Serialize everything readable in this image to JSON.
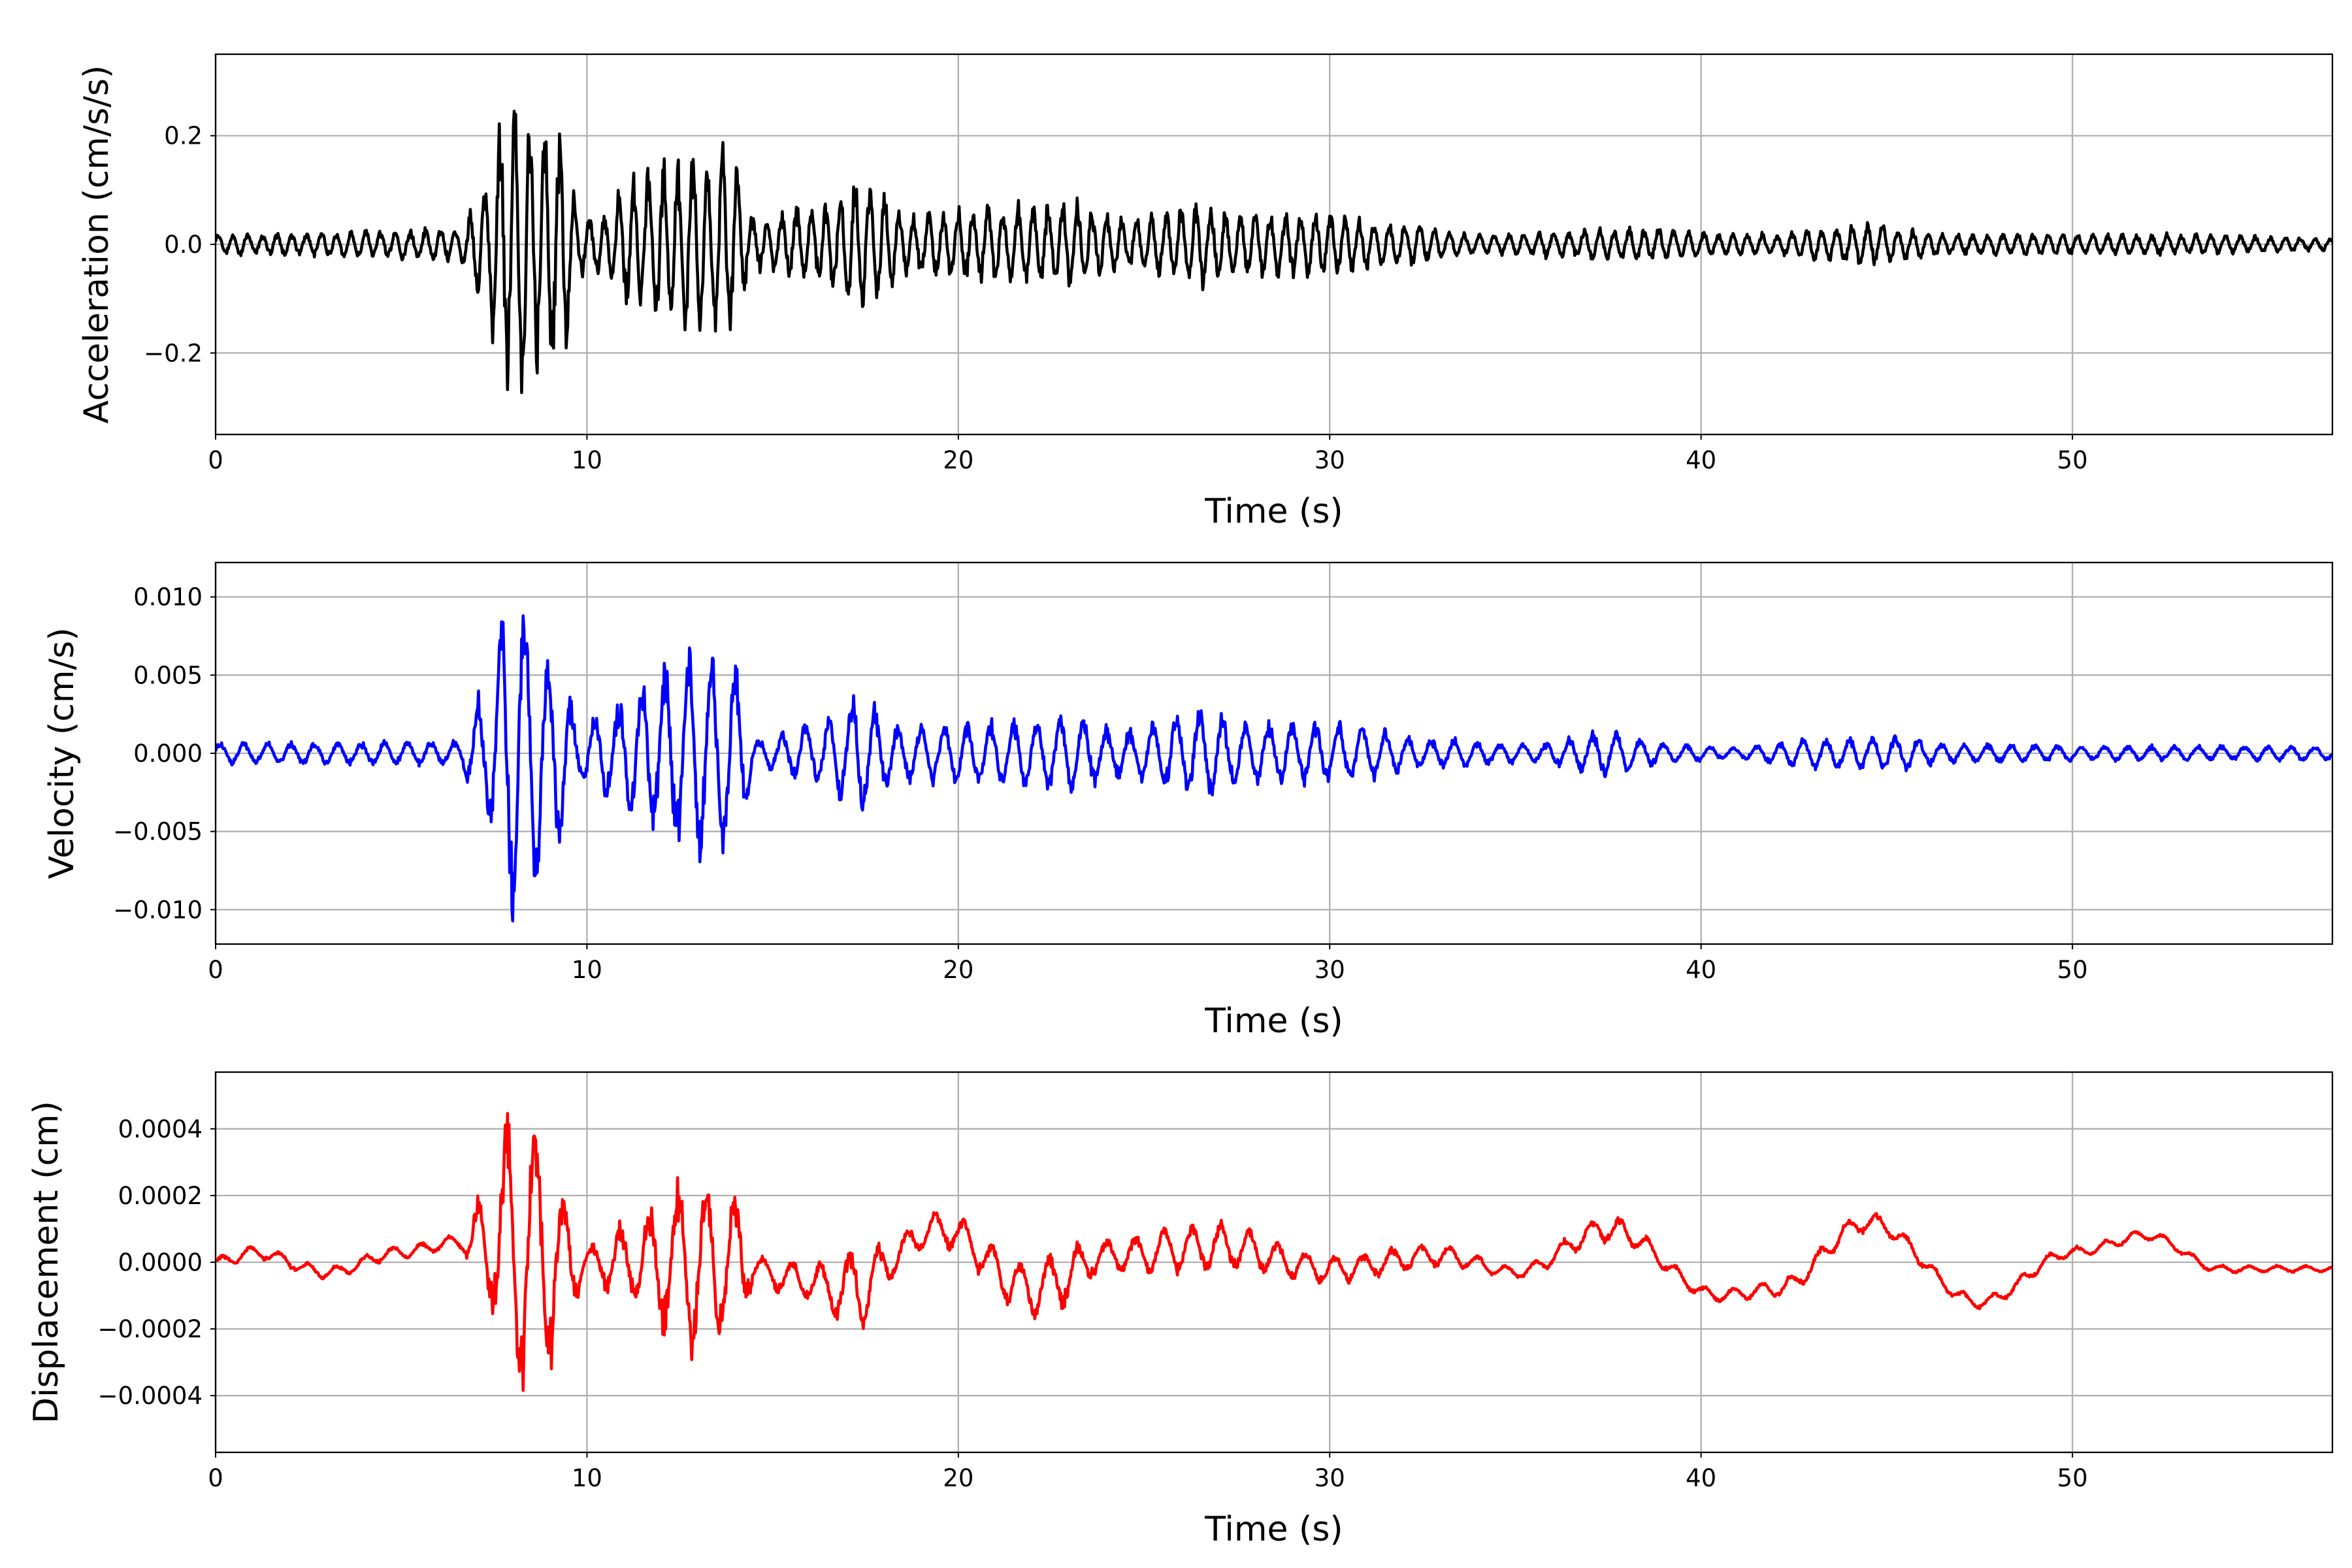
{
  "chart_data": [
    {
      "type": "line",
      "title": "",
      "xlabel": "Time (s)",
      "ylabel": "Acceleration (cm/s/s)",
      "xlim": [
        0,
        57
      ],
      "ylim": [
        -0.35,
        0.35
      ],
      "xticks": [
        0,
        10,
        20,
        30,
        40,
        50
      ],
      "xtick_labels": [
        "0",
        "10",
        "20",
        "30",
        "40",
        "50"
      ],
      "yticks": [
        -0.2,
        0.0,
        0.2
      ],
      "ytick_labels": [
        "−0.2",
        "0.0",
        "0.2"
      ],
      "grid": true,
      "color": "#000000",
      "dominant_frequency_hz": 2.5,
      "peak_positive": {
        "t": 8.0,
        "value": 0.28
      },
      "peak_negative": {
        "t": 8.1,
        "value": -0.32
      },
      "envelope": [
        [
          0,
          0.02
        ],
        [
          6.5,
          0.03
        ],
        [
          7.2,
          0.1
        ],
        [
          7.8,
          0.28
        ],
        [
          8.4,
          0.28
        ],
        [
          9.3,
          0.22
        ],
        [
          9.8,
          0.06
        ],
        [
          10.5,
          0.06
        ],
        [
          11,
          0.12
        ],
        [
          12.5,
          0.16
        ],
        [
          13.8,
          0.18
        ],
        [
          14.5,
          0.05
        ],
        [
          16,
          0.07
        ],
        [
          17.5,
          0.12
        ],
        [
          18.5,
          0.06
        ],
        [
          20,
          0.07
        ],
        [
          23,
          0.08
        ],
        [
          24.5,
          0.05
        ],
        [
          26.5,
          0.08
        ],
        [
          28,
          0.06
        ],
        [
          30,
          0.06
        ],
        [
          32,
          0.04
        ],
        [
          34,
          0.02
        ],
        [
          38,
          0.03
        ],
        [
          42,
          0.02
        ],
        [
          44,
          0.04
        ],
        [
          47,
          0.02
        ],
        [
          53,
          0.02
        ],
        [
          57,
          0.012
        ]
      ]
    },
    {
      "type": "line",
      "title": "",
      "xlabel": "Time (s)",
      "ylabel": "Velocity (cm/s)",
      "xlim": [
        0,
        57
      ],
      "ylim": [
        -0.0122,
        0.0122
      ],
      "xticks": [
        0,
        10,
        20,
        30,
        40,
        50
      ],
      "xtick_labels": [
        "0",
        "10",
        "20",
        "30",
        "40",
        "50"
      ],
      "yticks": [
        -0.01,
        -0.005,
        0.0,
        0.005,
        0.01
      ],
      "ytick_labels": [
        "−0.010",
        "−0.005",
        "0.000",
        "0.005",
        "0.010"
      ],
      "grid": true,
      "color": "#0000ff",
      "dominant_frequency_hz": 1.6,
      "peak_positive": {
        "t": 8.1,
        "value": 0.011
      },
      "peak_negative": {
        "t": 7.9,
        "value": -0.011
      },
      "envelope": [
        [
          0,
          0.0007
        ],
        [
          6.5,
          0.0008
        ],
        [
          7.2,
          0.004
        ],
        [
          7.9,
          0.011
        ],
        [
          8.5,
          0.009
        ],
        [
          9.3,
          0.006
        ],
        [
          9.8,
          0.002
        ],
        [
          10.5,
          0.003
        ],
        [
          11.5,
          0.005
        ],
        [
          13,
          0.007
        ],
        [
          14,
          0.006
        ],
        [
          14.6,
          0.001
        ],
        [
          16,
          0.002
        ],
        [
          17.3,
          0.004
        ],
        [
          18.3,
          0.002
        ],
        [
          20,
          0.002
        ],
        [
          23,
          0.0025
        ],
        [
          24.5,
          0.0015
        ],
        [
          26.5,
          0.003
        ],
        [
          28,
          0.002
        ],
        [
          30,
          0.002
        ],
        [
          33,
          0.001
        ],
        [
          35.5,
          0.0006
        ],
        [
          37.5,
          0.0015
        ],
        [
          39.5,
          0.0006
        ],
        [
          41,
          0.0004
        ],
        [
          43,
          0.001
        ],
        [
          45,
          0.0012
        ],
        [
          47,
          0.0006
        ],
        [
          52,
          0.0005
        ],
        [
          57,
          0.0005
        ]
      ]
    },
    {
      "type": "line",
      "title": "",
      "xlabel": "Time (s)",
      "ylabel": "Displacement (cm)",
      "xlim": [
        0,
        57
      ],
      "ylim": [
        -0.00057,
        0.00057
      ],
      "xticks": [
        0,
        10,
        20,
        30,
        40,
        50
      ],
      "xtick_labels": [
        "0",
        "10",
        "20",
        "30",
        "40",
        "50"
      ],
      "yticks": [
        -0.0004,
        -0.0002,
        0.0,
        0.0002,
        0.0004
      ],
      "ytick_labels": [
        "−0.0004",
        "−0.0002",
        "0.0000",
        "0.0002",
        "0.0004"
      ],
      "grid": true,
      "color": "#ff0000",
      "dominant_frequency_hz": 1.3,
      "peak_positive": {
        "t": 8.1,
        "value": 0.00042
      },
      "peak_negative": {
        "t": 8.0,
        "value": -0.00052
      },
      "envelope": [
        [
          0,
          2e-05
        ],
        [
          6.5,
          2e-05
        ],
        [
          7.2,
          0.00015
        ],
        [
          8.0,
          0.00045
        ],
        [
          8.8,
          0.0004
        ],
        [
          9.4,
          0.0002
        ],
        [
          10,
          5e-05
        ],
        [
          11,
          0.00012
        ],
        [
          12.8,
          0.00028
        ],
        [
          14,
          0.00022
        ],
        [
          14.6,
          4e-05
        ],
        [
          16,
          6e-05
        ],
        [
          17.2,
          0.00014
        ],
        [
          18.5,
          5e-05
        ],
        [
          20,
          6e-05
        ],
        [
          22.5,
          0.0001
        ],
        [
          24,
          5e-05
        ],
        [
          26.5,
          8e-05
        ],
        [
          29,
          5e-05
        ],
        [
          32,
          4e-05
        ],
        [
          35,
          2e-05
        ],
        [
          37.5,
          4e-05
        ],
        [
          40,
          2e-05
        ],
        [
          44,
          3e-05
        ],
        [
          47,
          2e-05
        ],
        [
          57,
          1e-05
        ]
      ],
      "drift": [
        [
          0,
          0
        ],
        [
          1,
          3e-05
        ],
        [
          3,
          -3e-05
        ],
        [
          5,
          3e-05
        ],
        [
          6.5,
          6e-05
        ],
        [
          10,
          0
        ],
        [
          14,
          0
        ],
        [
          15.5,
          -5e-05
        ],
        [
          17,
          -8e-05
        ],
        [
          19.5,
          0.0001
        ],
        [
          22,
          -8e-05
        ],
        [
          24,
          2e-05
        ],
        [
          27,
          5e-05
        ],
        [
          30,
          -2e-05
        ],
        [
          33,
          2e-05
        ],
        [
          35,
          -3e-05
        ],
        [
          37.5,
          0.0001
        ],
        [
          40.5,
          -0.0001
        ],
        [
          42,
          -8e-05
        ],
        [
          44.5,
          0.00012
        ],
        [
          47.5,
          -0.00012
        ],
        [
          50,
          3e-05
        ],
        [
          52,
          8e-05
        ],
        [
          54,
          -2e-05
        ],
        [
          57,
          -2e-05
        ]
      ]
    }
  ]
}
